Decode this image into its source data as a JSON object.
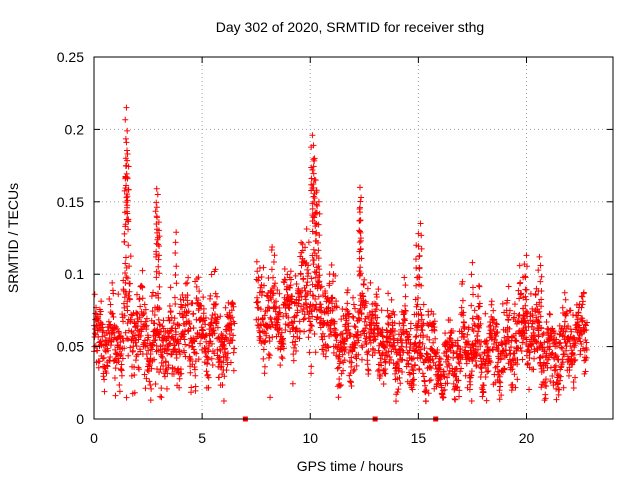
{
  "chart_data": {
    "type": "scatter",
    "title": "Day 302 of 2020, SRMTID for receiver sthg",
    "xlabel": "GPS time / hours",
    "ylabel": "SRMTID / TECUs",
    "xlim": [
      0,
      24
    ],
    "ylim": [
      0,
      0.25
    ],
    "x_ticks": [
      0,
      5,
      10,
      15,
      20
    ],
    "y_ticks": [
      0,
      0.05,
      0.1,
      0.15,
      0.2,
      0.25
    ],
    "x_tick_labels": [
      "0",
      "5",
      "10",
      "15",
      "20"
    ],
    "y_tick_labels": [
      "0",
      "0.05",
      "0.1",
      "0.15",
      "0.2",
      "0.25"
    ],
    "grid": true,
    "marker": "+",
    "series_color": "#ff0000",
    "zero_markers_x": [
      7.0,
      13.0,
      15.8
    ],
    "envelope": {
      "x": [
        0.0,
        0.5,
        1.0,
        1.5,
        2.0,
        2.5,
        3.0,
        3.5,
        4.0,
        4.5,
        5.0,
        5.5,
        6.0,
        6.5,
        7.0,
        7.5,
        8.0,
        8.5,
        9.0,
        9.5,
        10.0,
        10.5,
        11.0,
        11.5,
        12.0,
        12.5,
        13.0,
        13.5,
        14.0,
        14.5,
        15.0,
        15.5,
        16.0,
        16.5,
        17.0,
        17.5,
        18.0,
        18.5,
        19.0,
        19.5,
        20.0,
        20.5,
        21.0,
        21.5,
        22.0,
        22.5,
        22.8
      ],
      "center": [
        0.055,
        0.055,
        0.05,
        0.08,
        0.06,
        0.05,
        0.06,
        0.045,
        0.06,
        0.06,
        0.055,
        0.06,
        0.055,
        0.06,
        null,
        0.065,
        0.07,
        0.07,
        0.075,
        0.08,
        0.09,
        0.08,
        0.065,
        0.05,
        0.06,
        0.07,
        0.06,
        0.05,
        0.05,
        0.05,
        0.045,
        0.05,
        0.035,
        0.04,
        0.045,
        0.05,
        0.045,
        0.05,
        0.05,
        0.055,
        0.065,
        0.05,
        0.045,
        0.045,
        0.055,
        0.06,
        0.065
      ],
      "spread": [
        0.022,
        0.02,
        0.025,
        0.04,
        0.025,
        0.025,
        0.03,
        0.02,
        0.03,
        0.025,
        0.022,
        0.025,
        0.02,
        0.025,
        null,
        0.025,
        0.03,
        0.03,
        0.025,
        0.025,
        0.04,
        0.03,
        0.025,
        0.02,
        0.025,
        0.03,
        0.02,
        0.02,
        0.025,
        0.02,
        0.02,
        0.025,
        0.015,
        0.02,
        0.02,
        0.02,
        0.02,
        0.02,
        0.022,
        0.025,
        0.025,
        0.022,
        0.02,
        0.022,
        0.022,
        0.02,
        0.02
      ]
    },
    "peaks": [
      {
        "x": 1.5,
        "y": 0.215
      },
      {
        "x": 1.5,
        "y": 0.191
      },
      {
        "x": 1.55,
        "y": 0.183
      },
      {
        "x": 1.5,
        "y": 0.175
      },
      {
        "x": 1.45,
        "y": 0.166
      },
      {
        "x": 1.55,
        "y": 0.166
      },
      {
        "x": 2.9,
        "y": 0.159
      },
      {
        "x": 2.95,
        "y": 0.155
      },
      {
        "x": 2.9,
        "y": 0.14
      },
      {
        "x": 3.0,
        "y": 0.136
      },
      {
        "x": 3.8,
        "y": 0.129
      },
      {
        "x": 10.1,
        "y": 0.196
      },
      {
        "x": 10.15,
        "y": 0.189
      },
      {
        "x": 10.2,
        "y": 0.18
      },
      {
        "x": 10.1,
        "y": 0.172
      },
      {
        "x": 10.25,
        "y": 0.165
      },
      {
        "x": 10.3,
        "y": 0.158
      },
      {
        "x": 10.4,
        "y": 0.15
      },
      {
        "x": 12.3,
        "y": 0.16
      },
      {
        "x": 12.35,
        "y": 0.153
      },
      {
        "x": 12.3,
        "y": 0.146
      },
      {
        "x": 15.1,
        "y": 0.135
      },
      {
        "x": 15.0,
        "y": 0.128
      },
      {
        "x": 14.9,
        "y": 0.12
      },
      {
        "x": 20.0,
        "y": 0.113
      },
      {
        "x": 19.9,
        "y": 0.107
      },
      {
        "x": 20.6,
        "y": 0.112
      },
      {
        "x": 20.65,
        "y": 0.106
      },
      {
        "x": 17.5,
        "y": 0.108
      },
      {
        "x": 17.8,
        "y": 0.092
      }
    ]
  }
}
